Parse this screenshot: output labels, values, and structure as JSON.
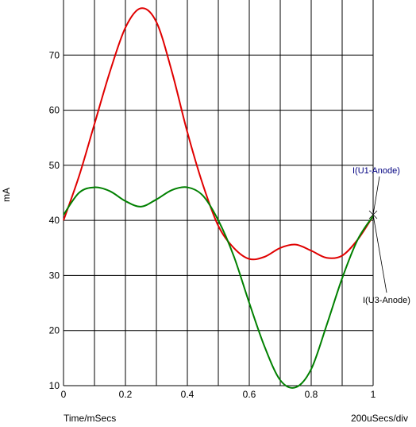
{
  "chart_data": {
    "type": "line",
    "xlabel": "Time/mSecs",
    "ylabel": "mA",
    "scale_label": "200uSecs/div",
    "xlim": [
      0,
      1
    ],
    "ylim": [
      10,
      80
    ],
    "x_ticks": [
      "0",
      "0.2",
      "0.4",
      "0.6",
      "0.8",
      "1"
    ],
    "y_ticks": [
      "10",
      "20",
      "30",
      "40",
      "50",
      "60",
      "70"
    ],
    "y_tick_values": [
      10,
      20,
      30,
      40,
      50,
      60,
      70
    ],
    "x_gridlines": [
      0,
      0.1,
      0.2,
      0.3,
      0.4,
      0.5,
      0.6,
      0.7,
      0.8,
      0.9,
      1.0
    ],
    "grid": true,
    "series": [
      {
        "name": "I(U1-Anode)",
        "color": "#e00000",
        "x": [
          0,
          0.05,
          0.1,
          0.15,
          0.2,
          0.25,
          0.3,
          0.35,
          0.4,
          0.45,
          0.5,
          0.55,
          0.6,
          0.65,
          0.7,
          0.75,
          0.8,
          0.85,
          0.9,
          0.95,
          1.0
        ],
        "y": [
          40,
          48,
          57.5,
          67,
          75,
          78.5,
          76,
          67,
          56,
          46.5,
          39,
          35,
          33,
          33.4,
          35,
          35.6,
          34.5,
          33.2,
          33.6,
          36.5,
          40.8
        ]
      },
      {
        "name": "I(U3-Anode)",
        "color": "#008000",
        "x": [
          0,
          0.05,
          0.1,
          0.15,
          0.2,
          0.25,
          0.3,
          0.35,
          0.4,
          0.45,
          0.5,
          0.55,
          0.6,
          0.65,
          0.7,
          0.75,
          0.8,
          0.85,
          0.9,
          0.95,
          1.0
        ],
        "y": [
          41,
          45,
          46,
          45.3,
          43.5,
          42.5,
          43.8,
          45.5,
          46,
          44.5,
          40,
          33.5,
          25,
          17,
          11,
          9.7,
          13,
          21,
          29.5,
          36.5,
          40.8
        ]
      }
    ],
    "annotations": [
      {
        "text": "I(U1-Anode)",
        "color": "#000080"
      },
      {
        "text": "I(U3-Anode)",
        "color": "#000000"
      }
    ]
  }
}
